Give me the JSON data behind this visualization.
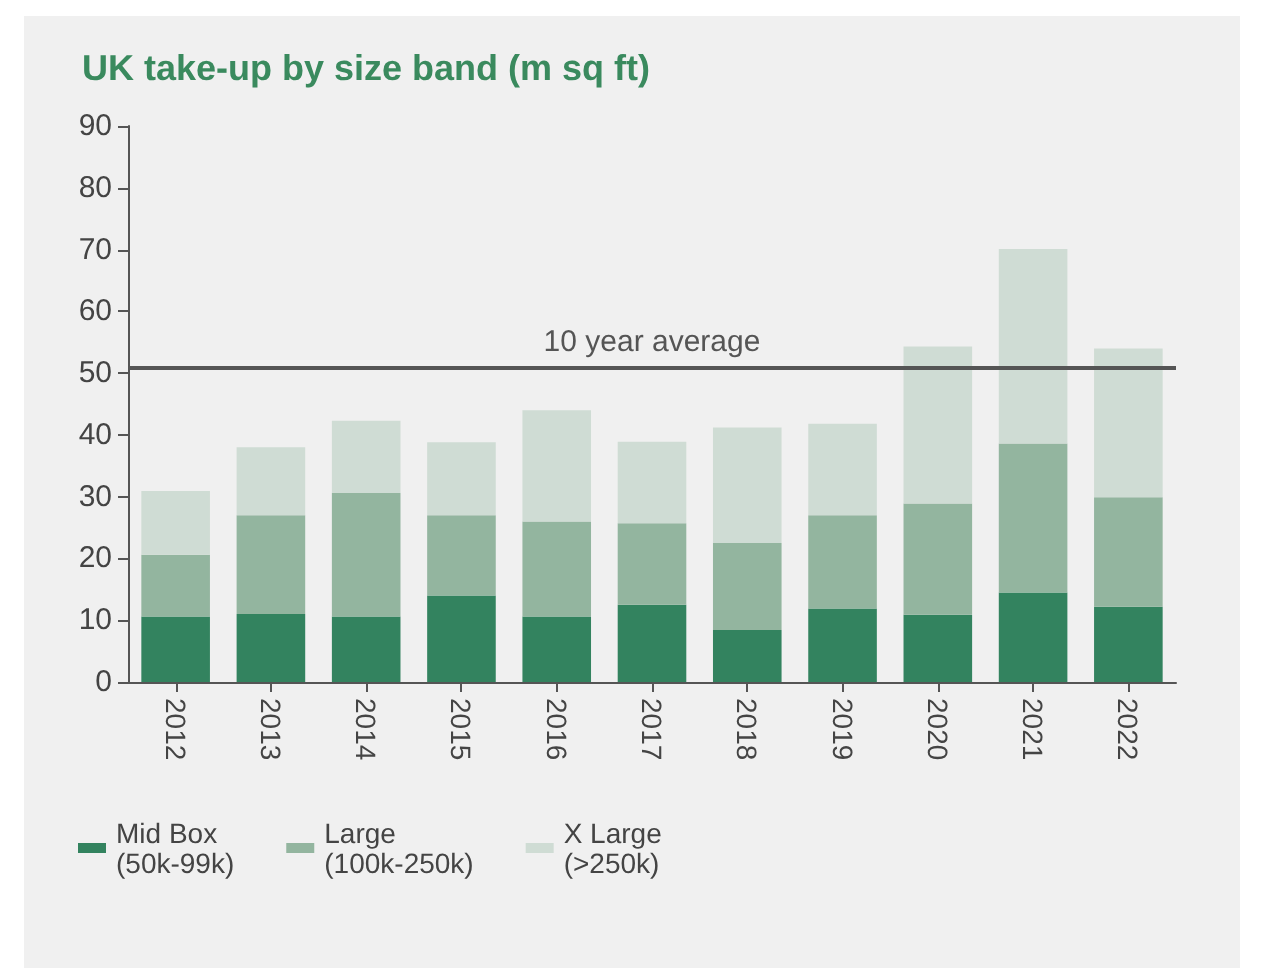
{
  "chart_data": {
    "type": "bar",
    "title": "UK take-up by size band (m sq ft)",
    "stacked": true,
    "categories": [
      "2012",
      "2013",
      "2014",
      "2015",
      "2016",
      "2017",
      "2018",
      "2019",
      "2020",
      "2021",
      "2022"
    ],
    "series": [
      {
        "name": "Mid Box\n(50k-99k)",
        "color": "#33835f",
        "values": [
          10.6,
          11,
          10.6,
          14,
          10.6,
          12.5,
          8.4,
          11.9,
          10.9,
          14.5,
          12.2
        ]
      },
      {
        "name": "Large\n(100k-250k)",
        "color": "#93b59f",
        "values": [
          10,
          16,
          20,
          13,
          15.4,
          13.2,
          14.1,
          15.1,
          18,
          24.1,
          17.7
        ]
      },
      {
        "name": "X Large\n(>250k)",
        "color": "#cfdcd4",
        "values": [
          10.3,
          11,
          11.7,
          11.8,
          18,
          13.2,
          18.7,
          14.8,
          25.4,
          31.5,
          24.1
        ]
      }
    ],
    "ylim": [
      0,
      90
    ],
    "yticks": [
      0,
      10,
      20,
      30,
      40,
      50,
      60,
      70,
      80,
      90
    ],
    "grid": false,
    "legend": "bottom left",
    "ref_lines": [
      {
        "axis": "y",
        "value": 51,
        "label": "10 year average",
        "color": "#555555"
      }
    ]
  }
}
